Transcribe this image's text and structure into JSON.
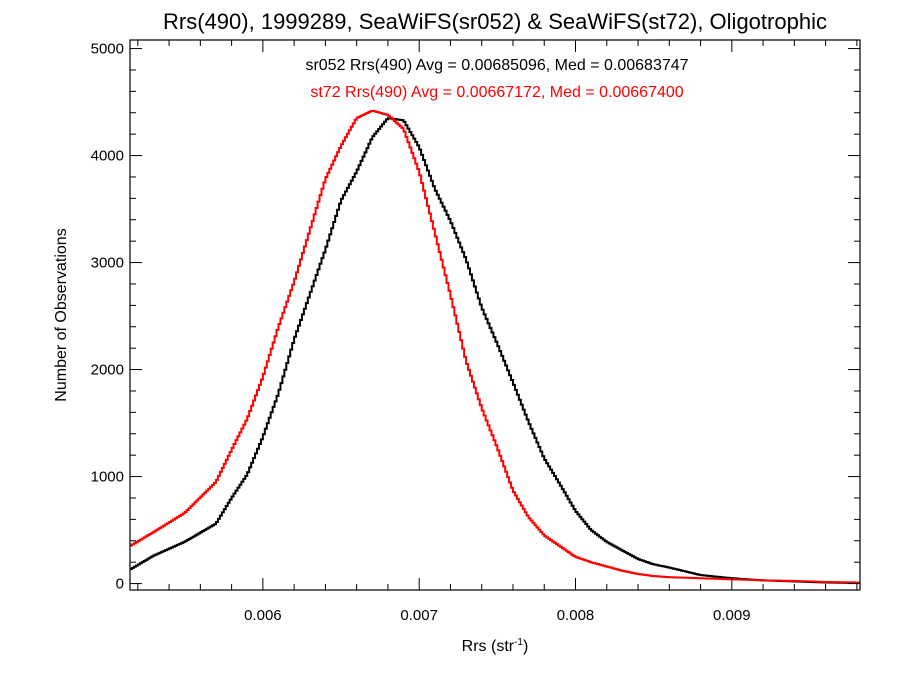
{
  "chart_data": {
    "type": "line",
    "step": true,
    "title": "Rrs(490), 1999289, SeaWiFS(sr052) & SeaWiFS(st72), Oligotrophic",
    "xlabel": "Rrs (str",
    "xlabel_sup": "-1",
    "xlabel_end": ")",
    "ylabel": "Number of Observations",
    "xlim": [
      0.00515,
      0.00982
    ],
    "ylim": [
      -60,
      5080
    ],
    "x_ticks": [
      0.006,
      0.007,
      0.008,
      0.009
    ],
    "x_tick_labels": [
      "0.006",
      "0.007",
      "0.008",
      "0.009"
    ],
    "y_ticks": [
      0,
      1000,
      2000,
      3000,
      4000,
      5000
    ],
    "y_tick_labels": [
      "0",
      "1000",
      "2000",
      "3000",
      "4000",
      "5000"
    ],
    "grid": false,
    "legend": "top-center (text annotations)",
    "annotations": [
      {
        "text": "sr052 Rrs(490) Avg = 0.00685096, Med = 0.00683747",
        "color": "#000000"
      },
      {
        "text": "st72 Rrs(490) Avg = 0.00667172, Med = 0.00667400",
        "color": "#ff0000"
      }
    ],
    "series": [
      {
        "color": "#000000",
        "x": [
          0.00515,
          0.0053,
          0.0055,
          0.0057,
          0.0058,
          0.0059,
          0.006,
          0.0061,
          0.0062,
          0.0063,
          0.0064,
          0.0065,
          0.0066,
          0.0067,
          0.0068,
          0.0069,
          0.007,
          0.0071,
          0.0072,
          0.0073,
          0.0074,
          0.0075,
          0.0076,
          0.0077,
          0.0078,
          0.0079,
          0.008,
          0.0081,
          0.0082,
          0.0083,
          0.0084,
          0.0085,
          0.0086,
          0.0088,
          0.009,
          0.0092,
          0.0094,
          0.0096,
          0.00982
        ],
        "y": [
          130,
          260,
          390,
          560,
          800,
          1020,
          1370,
          1780,
          2280,
          2700,
          3120,
          3580,
          3850,
          4170,
          4350,
          4330,
          4080,
          3690,
          3390,
          3030,
          2580,
          2240,
          1880,
          1510,
          1170,
          930,
          680,
          500,
          390,
          310,
          230,
          180,
          150,
          80,
          50,
          30,
          20,
          10,
          5
        ]
      },
      {
        "color": "#ff0000",
        "x": [
          0.00515,
          0.0053,
          0.0055,
          0.0057,
          0.0058,
          0.0059,
          0.006,
          0.0061,
          0.0062,
          0.0063,
          0.0064,
          0.0065,
          0.0066,
          0.0067,
          0.0068,
          0.0069,
          0.007,
          0.0071,
          0.0072,
          0.0073,
          0.0074,
          0.0075,
          0.0076,
          0.0077,
          0.0078,
          0.0079,
          0.008,
          0.0081,
          0.0082,
          0.0083,
          0.0084,
          0.0085,
          0.0086,
          0.0088,
          0.009,
          0.0092,
          0.0094,
          0.0096,
          0.00982
        ],
        "y": [
          350,
          480,
          660,
          950,
          1250,
          1540,
          1930,
          2400,
          2820,
          3300,
          3780,
          4090,
          4350,
          4420,
          4380,
          4250,
          3850,
          3280,
          2700,
          2080,
          1640,
          1270,
          870,
          620,
          450,
          350,
          250,
          200,
          160,
          120,
          90,
          70,
          60,
          50,
          40,
          30,
          25,
          15,
          10
        ]
      }
    ]
  }
}
